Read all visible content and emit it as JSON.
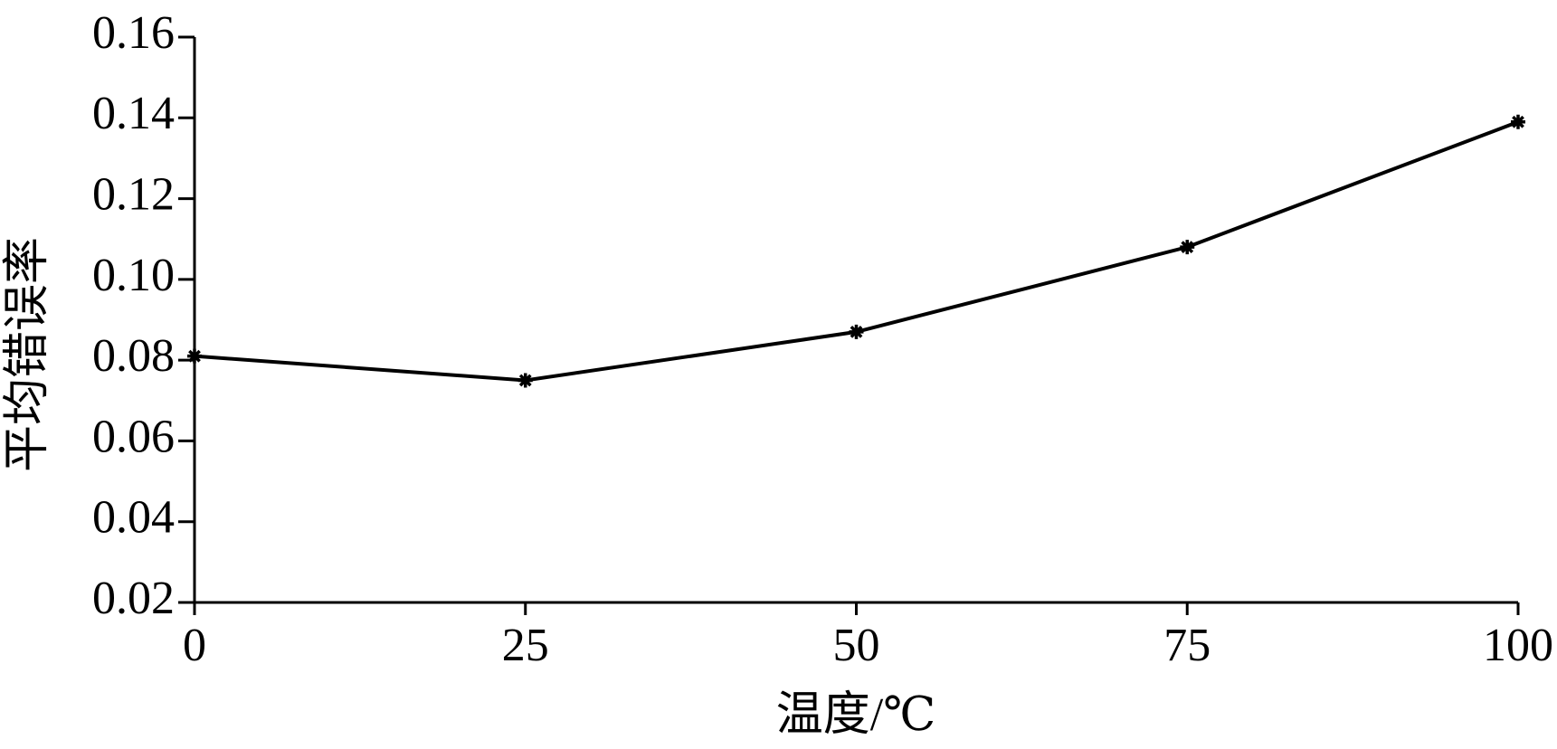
{
  "chart_data": {
    "type": "line",
    "x_label": "温度/℃",
    "y_label": "平均错误率",
    "x": [
      0,
      25,
      50,
      75,
      100
    ],
    "values": [
      0.081,
      0.075,
      0.087,
      0.108,
      0.139
    ],
    "color": "#000000",
    "xlim": [
      0,
      100
    ],
    "xticks": [
      0,
      25,
      50,
      75,
      100
    ],
    "ylim": [
      0.02,
      0.16
    ],
    "yticks": [
      0.02,
      0.04,
      0.06,
      0.08,
      {
        "value": 0.1,
        "label": "0.10"
      },
      0.12,
      0.14,
      0.16
    ],
    "grid": false
  }
}
